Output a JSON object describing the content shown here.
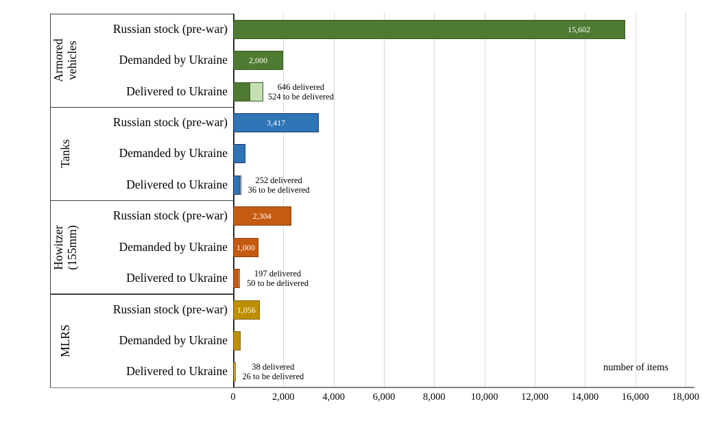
{
  "chart_data": {
    "type": "bar",
    "orientation": "horizontal",
    "x_axis": {
      "label": "number of items",
      "min": 0,
      "max": 18000,
      "tick_interval": 2000,
      "tick_labels": [
        "0",
        "2,000",
        "4,000",
        "6,000",
        "8,000",
        "10,000",
        "12,000",
        "14,000",
        "16,000",
        "18,000"
      ],
      "gridlines": true
    },
    "row_labels": [
      "Russian stock (pre-war)",
      "Demanded by Ukraine",
      "Delivered to Ukraine"
    ],
    "groups": [
      {
        "category": "Armored vehicles",
        "category_lines": [
          "Armored",
          "vehicles"
        ],
        "colors": {
          "fill": "#4e7b31",
          "border": "#385723",
          "light_fill": "#c5e0b4"
        },
        "russian_stock": {
          "value": 15602,
          "label": "15,602",
          "label_align": "inside-end"
        },
        "demanded": {
          "value": 2000,
          "label": "2,000",
          "label_align": "center"
        },
        "delivered": {
          "delivered": 646,
          "to_be_delivered": 524,
          "annotation_lines": [
            "646 delivered",
            "524 to be delivered"
          ]
        }
      },
      {
        "category": "Tanks",
        "category_lines": [
          "Tanks"
        ],
        "colors": {
          "fill": "#2e75b6",
          "border": "#1f3864",
          "light_fill": "#bdd7ee"
        },
        "russian_stock": {
          "value": 3417,
          "label": "3,417",
          "label_align": "center"
        },
        "demanded": {
          "value": 500,
          "label": null,
          "estimated": true
        },
        "delivered": {
          "delivered": 252,
          "to_be_delivered": 36,
          "annotation_lines": [
            "252 delivered",
            "36 to be delivered"
          ]
        }
      },
      {
        "category": "Howitzer (155mm)",
        "category_lines": [
          "Howitzer",
          "(155mm)"
        ],
        "colors": {
          "fill": "#c55a11",
          "border": "#843c0a",
          "light_fill": "#f7cbac"
        },
        "russian_stock": {
          "value": 2304,
          "label": "2,304",
          "label_align": "center"
        },
        "demanded": {
          "value": 1000,
          "label": "1,000",
          "label_align": "center"
        },
        "delivered": {
          "delivered": 197,
          "to_be_delivered": 50,
          "annotation_lines": [
            "197 delivered",
            "50 to be delivered"
          ]
        }
      },
      {
        "category": "MLRS",
        "category_lines": [
          "MLRS"
        ],
        "colors": {
          "fill": "#bf8f00",
          "border": "#7f5f00",
          "light_fill": "#ffe699"
        },
        "russian_stock": {
          "value": 1056,
          "label": "1,056",
          "label_align": "center"
        },
        "demanded": {
          "value": 300,
          "label": null,
          "estimated": true
        },
        "delivered": {
          "delivered": 38,
          "to_be_delivered": 26,
          "annotation_lines": [
            "38 delivered",
            "26 to be delivered"
          ]
        }
      }
    ]
  }
}
